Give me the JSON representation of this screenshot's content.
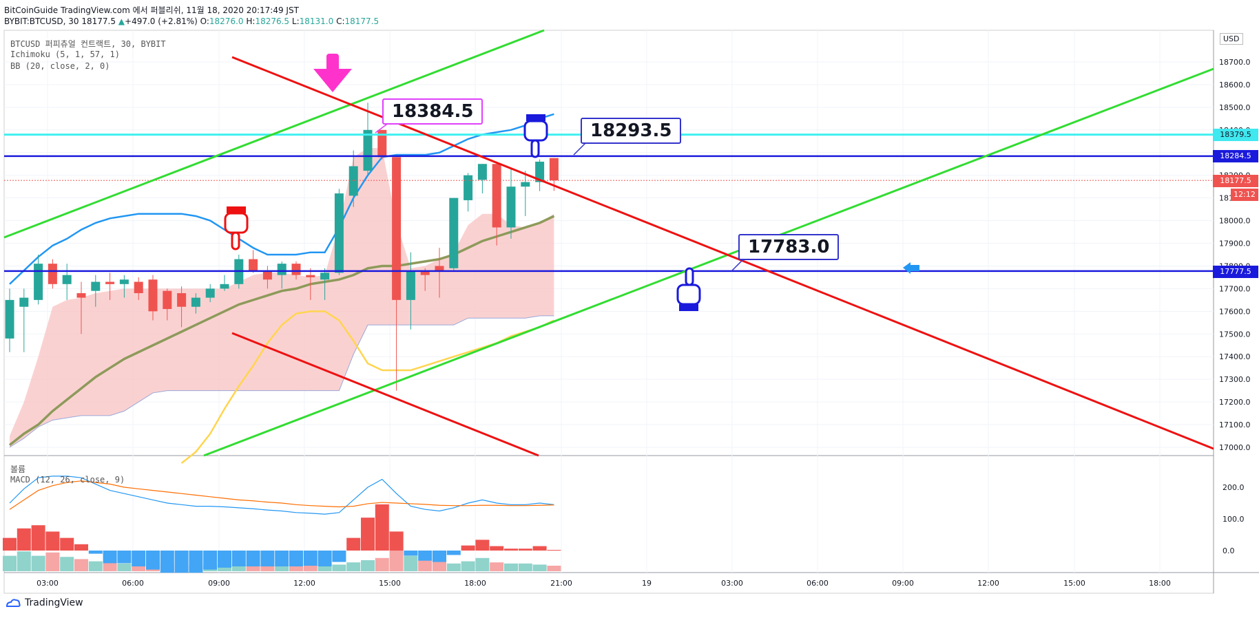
{
  "header": {
    "line1": "BitCoinGuide TradingView.com 에서 퍼블리쉬, 11월 18, 2020 20:17:49 JST",
    "symbol": "BYBIT:BTCUSD, 30",
    "last": "18177.5",
    "change": "+497.0 (+2.81%)",
    "o_label": "O:",
    "o": "18276.0",
    "h_label": "H:",
    "h": "18276.5",
    "l_label": "L:",
    "l": "18131.0",
    "c_label": "C:",
    "c": "18177.5"
  },
  "legend": {
    "main": "BTCUSD 퍼피츄얼 컨트랙트, 30, BYBIT",
    "ichimoku": "Ichimoku (5, 1, 57, 1)",
    "bb": "BB (20, close, 2, 0)",
    "volume": "볼륨",
    "macd": "MACD (12, 26, close, 9)"
  },
  "axis": {
    "currency": "USD",
    "price_ticks": [
      "18700.0",
      "18600.0",
      "18500.0",
      "18400.0",
      "18300.0",
      "18200.0",
      "18100.0",
      "18000.0",
      "17900.0",
      "17800.0",
      "17700.0",
      "17600.0",
      "17500.0",
      "17400.0",
      "17300.0",
      "17200.0",
      "17100.0",
      "17000.0"
    ],
    "macd_ticks": [
      "200.0",
      "100.0",
      "0.0"
    ],
    "time_ticks": [
      "03:00",
      "06:00",
      "09:00",
      "12:00",
      "15:00",
      "18:00",
      "21:00",
      "19",
      "03:00",
      "06:00",
      "09:00",
      "12:00",
      "15:00",
      "18:00"
    ]
  },
  "price_tags": [
    {
      "text": "18379.5",
      "color": "#00e5ff"
    },
    {
      "text": "18284.5",
      "color": "#1a1adc"
    },
    {
      "text": "18177.5",
      "color": "#ef5350"
    },
    {
      "text": "12:12",
      "color": "#ef5350"
    },
    {
      "text": "17777.5",
      "color": "#1a1adc"
    }
  ],
  "callouts": [
    {
      "text": "18384.5",
      "border": "#e040fb"
    },
    {
      "text": "18293.5",
      "border": "#3333cc"
    },
    {
      "text": "17783.0",
      "border": "#3333cc"
    }
  ],
  "brand": "TradingView",
  "colors": {
    "up": "#26a69a",
    "down": "#ef5350",
    "bb": "#2196f3",
    "ichimoku_base": "#ffd54f",
    "ichimoku_cloud": "#f8c1c1",
    "trend_green": "#32dc32",
    "trend_red": "#ee1111",
    "level_blue": "#1a1adc",
    "level_cyan": "#40f0f0",
    "arrow": "#ff33cc"
  },
  "chart_data": {
    "type": "candlestick",
    "interval": "30",
    "ylim": [
      16990,
      18800
    ],
    "candles": [
      {
        "t": "01:30",
        "o": 17480,
        "h": 17700,
        "l": 17420,
        "c": 17650
      },
      {
        "t": "02:00",
        "o": 17620,
        "h": 17700,
        "l": 17420,
        "c": 17660
      },
      {
        "t": "02:30",
        "o": 17650,
        "h": 17850,
        "l": 17630,
        "c": 17810
      },
      {
        "t": "03:00",
        "o": 17810,
        "h": 17830,
        "l": 17700,
        "c": 17720
      },
      {
        "t": "03:30",
        "o": 17720,
        "h": 17810,
        "l": 17650,
        "c": 17760
      },
      {
        "t": "04:00",
        "o": 17680,
        "h": 17730,
        "l": 17500,
        "c": 17660
      },
      {
        "t": "04:30",
        "o": 17690,
        "h": 17760,
        "l": 17620,
        "c": 17730
      },
      {
        "t": "05:00",
        "o": 17730,
        "h": 17770,
        "l": 17650,
        "c": 17720
      },
      {
        "t": "05:30",
        "o": 17720,
        "h": 17760,
        "l": 17660,
        "c": 17740
      },
      {
        "t": "06:00",
        "o": 17730,
        "h": 17750,
        "l": 17650,
        "c": 17680
      },
      {
        "t": "06:30",
        "o": 17740,
        "h": 17760,
        "l": 17560,
        "c": 17600
      },
      {
        "t": "07:00",
        "o": 17690,
        "h": 17700,
        "l": 17560,
        "c": 17610
      },
      {
        "t": "07:30",
        "o": 17680,
        "h": 17710,
        "l": 17530,
        "c": 17620
      },
      {
        "t": "08:00",
        "o": 17620,
        "h": 17680,
        "l": 17590,
        "c": 17660
      },
      {
        "t": "08:30",
        "o": 17660,
        "h": 17720,
        "l": 17640,
        "c": 17700
      },
      {
        "t": "09:00",
        "o": 17700,
        "h": 17760,
        "l": 17690,
        "c": 17720
      },
      {
        "t": "09:30",
        "o": 17720,
        "h": 17850,
        "l": 17700,
        "c": 17830
      },
      {
        "t": "10:00",
        "o": 17830,
        "h": 17870,
        "l": 17770,
        "c": 17780
      },
      {
        "t": "10:30",
        "o": 17780,
        "h": 17800,
        "l": 17700,
        "c": 17740
      },
      {
        "t": "11:00",
        "o": 17760,
        "h": 17820,
        "l": 17700,
        "c": 17810
      },
      {
        "t": "11:30",
        "o": 17810,
        "h": 17820,
        "l": 17740,
        "c": 17760
      },
      {
        "t": "12:00",
        "o": 17760,
        "h": 17790,
        "l": 17650,
        "c": 17750
      },
      {
        "t": "12:30",
        "o": 17740,
        "h": 17790,
        "l": 17650,
        "c": 17770
      },
      {
        "t": "13:00",
        "o": 17770,
        "h": 18140,
        "l": 17760,
        "c": 18120
      },
      {
        "t": "13:30",
        "o": 18110,
        "h": 18310,
        "l": 18060,
        "c": 18240
      },
      {
        "t": "14:00",
        "o": 18220,
        "h": 18520,
        "l": 18200,
        "c": 18400
      },
      {
        "t": "14:30",
        "o": 18400,
        "h": 18400,
        "l": 18270,
        "c": 18280
      },
      {
        "t": "15:00",
        "o": 18280,
        "h": 18280,
        "l": 17250,
        "c": 17650
      },
      {
        "t": "15:30",
        "o": 17650,
        "h": 17860,
        "l": 17520,
        "c": 17780
      },
      {
        "t": "16:00",
        "o": 17780,
        "h": 17790,
        "l": 17690,
        "c": 17760
      },
      {
        "t": "16:30",
        "o": 17800,
        "h": 17880,
        "l": 17660,
        "c": 17780
      },
      {
        "t": "17:00",
        "o": 17790,
        "h": 18100,
        "l": 17780,
        "c": 18100
      },
      {
        "t": "17:30",
        "o": 18090,
        "h": 18210,
        "l": 18040,
        "c": 18200
      },
      {
        "t": "18:00",
        "o": 18180,
        "h": 18250,
        "l": 18120,
        "c": 18250
      },
      {
        "t": "18:30",
        "o": 18250,
        "h": 18260,
        "l": 17890,
        "c": 17970
      },
      {
        "t": "19:00",
        "o": 17970,
        "h": 18230,
        "l": 17920,
        "c": 18150
      },
      {
        "t": "19:30",
        "o": 18150,
        "h": 18220,
        "l": 18020,
        "c": 18170
      },
      {
        "t": "20:00",
        "o": 18170,
        "h": 18270,
        "l": 18130,
        "c": 18260
      },
      {
        "t": "20:30",
        "o": 18276,
        "h": 18276.5,
        "l": 18131,
        "c": 18177.5
      }
    ],
    "bb_upper": [
      17720,
      17780,
      17840,
      17890,
      17920,
      17960,
      17990,
      18010,
      18020,
      18030,
      18030,
      18030,
      18030,
      18020,
      18000,
      17960,
      17920,
      17880,
      17850,
      17850,
      17850,
      17860,
      17860,
      17970,
      18100,
      18200,
      18280,
      18290,
      18290,
      18290,
      18300,
      18330,
      18360,
      18380,
      18390,
      18400,
      18420,
      18450,
      18470
    ],
    "bb_basis": [
      17010,
      17060,
      17100,
      17160,
      17210,
      17260,
      17310,
      17350,
      17390,
      17420,
      17450,
      17480,
      17510,
      17540,
      17570,
      17600,
      17630,
      17650,
      17670,
      17690,
      17700,
      17720,
      17730,
      17740,
      17760,
      17790,
      17800,
      17800,
      17810,
      17820,
      17830,
      17850,
      17880,
      17910,
      17930,
      17950,
      17970,
      17990,
      18020
    ],
    "ichimoku_base": [
      null,
      null,
      null,
      null,
      null,
      null,
      null,
      null,
      null,
      null,
      null,
      null,
      16930,
      16980,
      17060,
      17170,
      17270,
      17360,
      17460,
      17540,
      17590,
      17600,
      17600,
      17560,
      17470,
      17370,
      17340,
      17340,
      17340,
      17360,
      17380,
      17400,
      17420,
      17440,
      17460,
      17490,
      17510,
      17530,
      17560
    ],
    "cloud_top": [
      17050,
      17200,
      17400,
      17620,
      17650,
      17660,
      17680,
      17690,
      17700,
      17700,
      17700,
      17700,
      17700,
      17700,
      17700,
      17700,
      17730,
      17760,
      17770,
      17770,
      17760,
      17750,
      17760,
      17980,
      18280,
      18320,
      18320,
      17990,
      17790,
      17800,
      17830,
      17860,
      17980,
      18030,
      18030,
      17980,
      17970,
      17990,
      18030
    ],
    "cloud_bottom": [
      17000,
      17040,
      17090,
      17120,
      17130,
      17140,
      17140,
      17140,
      17160,
      17200,
      17240,
      17250,
      17250,
      17250,
      17250,
      17250,
      17250,
      17250,
      17250,
      17250,
      17250,
      17250,
      17250,
      17250,
      17410,
      17540,
      17540,
      17540,
      17540,
      17540,
      17540,
      17540,
      17570,
      17570,
      17570,
      17570,
      17570,
      17580,
      17580
    ],
    "macd": [
      150,
      195,
      230,
      235,
      235,
      230,
      210,
      190,
      180,
      170,
      160,
      150,
      145,
      140,
      140,
      138,
      135,
      132,
      128,
      125,
      120,
      118,
      115,
      120,
      160,
      200,
      225,
      180,
      140,
      130,
      125,
      135,
      150,
      160,
      150,
      145,
      145,
      150,
      145
    ],
    "signal": [
      130,
      160,
      190,
      205,
      215,
      220,
      215,
      210,
      200,
      195,
      190,
      185,
      180,
      175,
      170,
      165,
      160,
      157,
      153,
      150,
      145,
      142,
      140,
      138,
      140,
      148,
      152,
      150,
      148,
      146,
      143,
      142,
      142,
      143,
      143,
      142,
      142,
      143,
      144
    ],
    "volume": [
      14,
      18,
      14,
      17,
      13,
      11,
      9,
      8,
      7,
      6,
      5,
      6,
      5,
      5,
      6,
      6,
      6,
      6,
      5,
      5,
      5,
      5,
      5,
      6,
      8,
      10,
      12,
      36,
      14,
      10,
      9,
      7,
      9,
      12,
      8,
      7,
      7,
      6,
      5
    ]
  }
}
